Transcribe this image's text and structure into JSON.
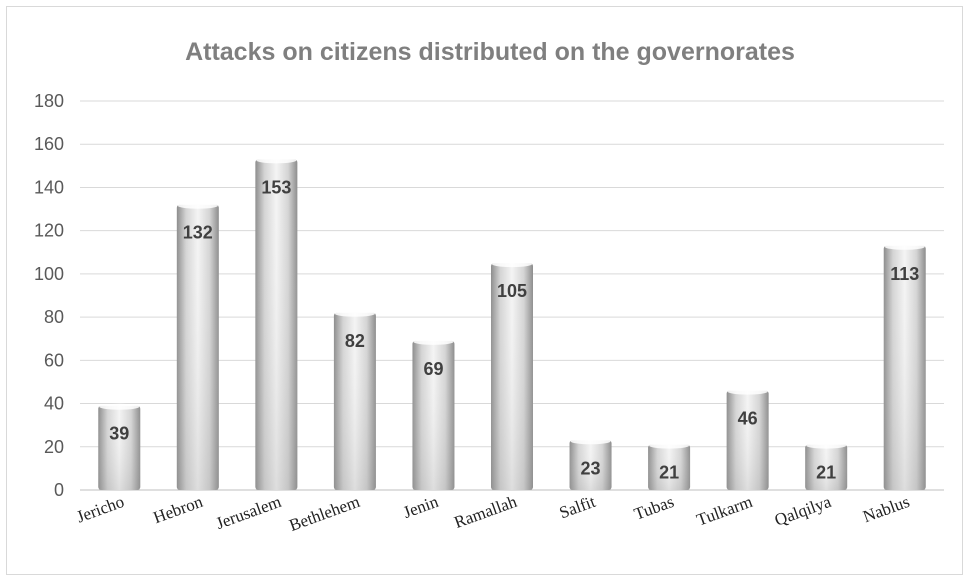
{
  "chart_data": {
    "type": "bar",
    "title": "Attacks on citizens distributed on the governorates",
    "categories": [
      "Jericho",
      "Hebron",
      "Jerusalem",
      "Bethlehem",
      "Jenin",
      "Ramallah",
      "Salfit",
      "Tubas",
      "Tulkarm",
      "Qalqilya",
      "Nablus"
    ],
    "values": [
      39,
      132,
      153,
      82,
      69,
      105,
      23,
      21,
      46,
      21,
      113
    ],
    "data_labels": [
      "39",
      "132",
      "153",
      "82",
      "69",
      "105",
      "23",
      "21",
      "46",
      "21",
      "113"
    ],
    "ylim": [
      0,
      180
    ],
    "yticks": [
      "0",
      "20",
      "40",
      "60",
      "80",
      "100",
      "120",
      "140",
      "160",
      "180"
    ],
    "xlabel": "",
    "ylabel": "",
    "grid": true,
    "legend": "none",
    "colors": {
      "bar_light": "#f2f2f2",
      "bar_dark": "#8c8c8c",
      "grid": "#d9d9d9",
      "axis": "#bfbfbf"
    }
  }
}
